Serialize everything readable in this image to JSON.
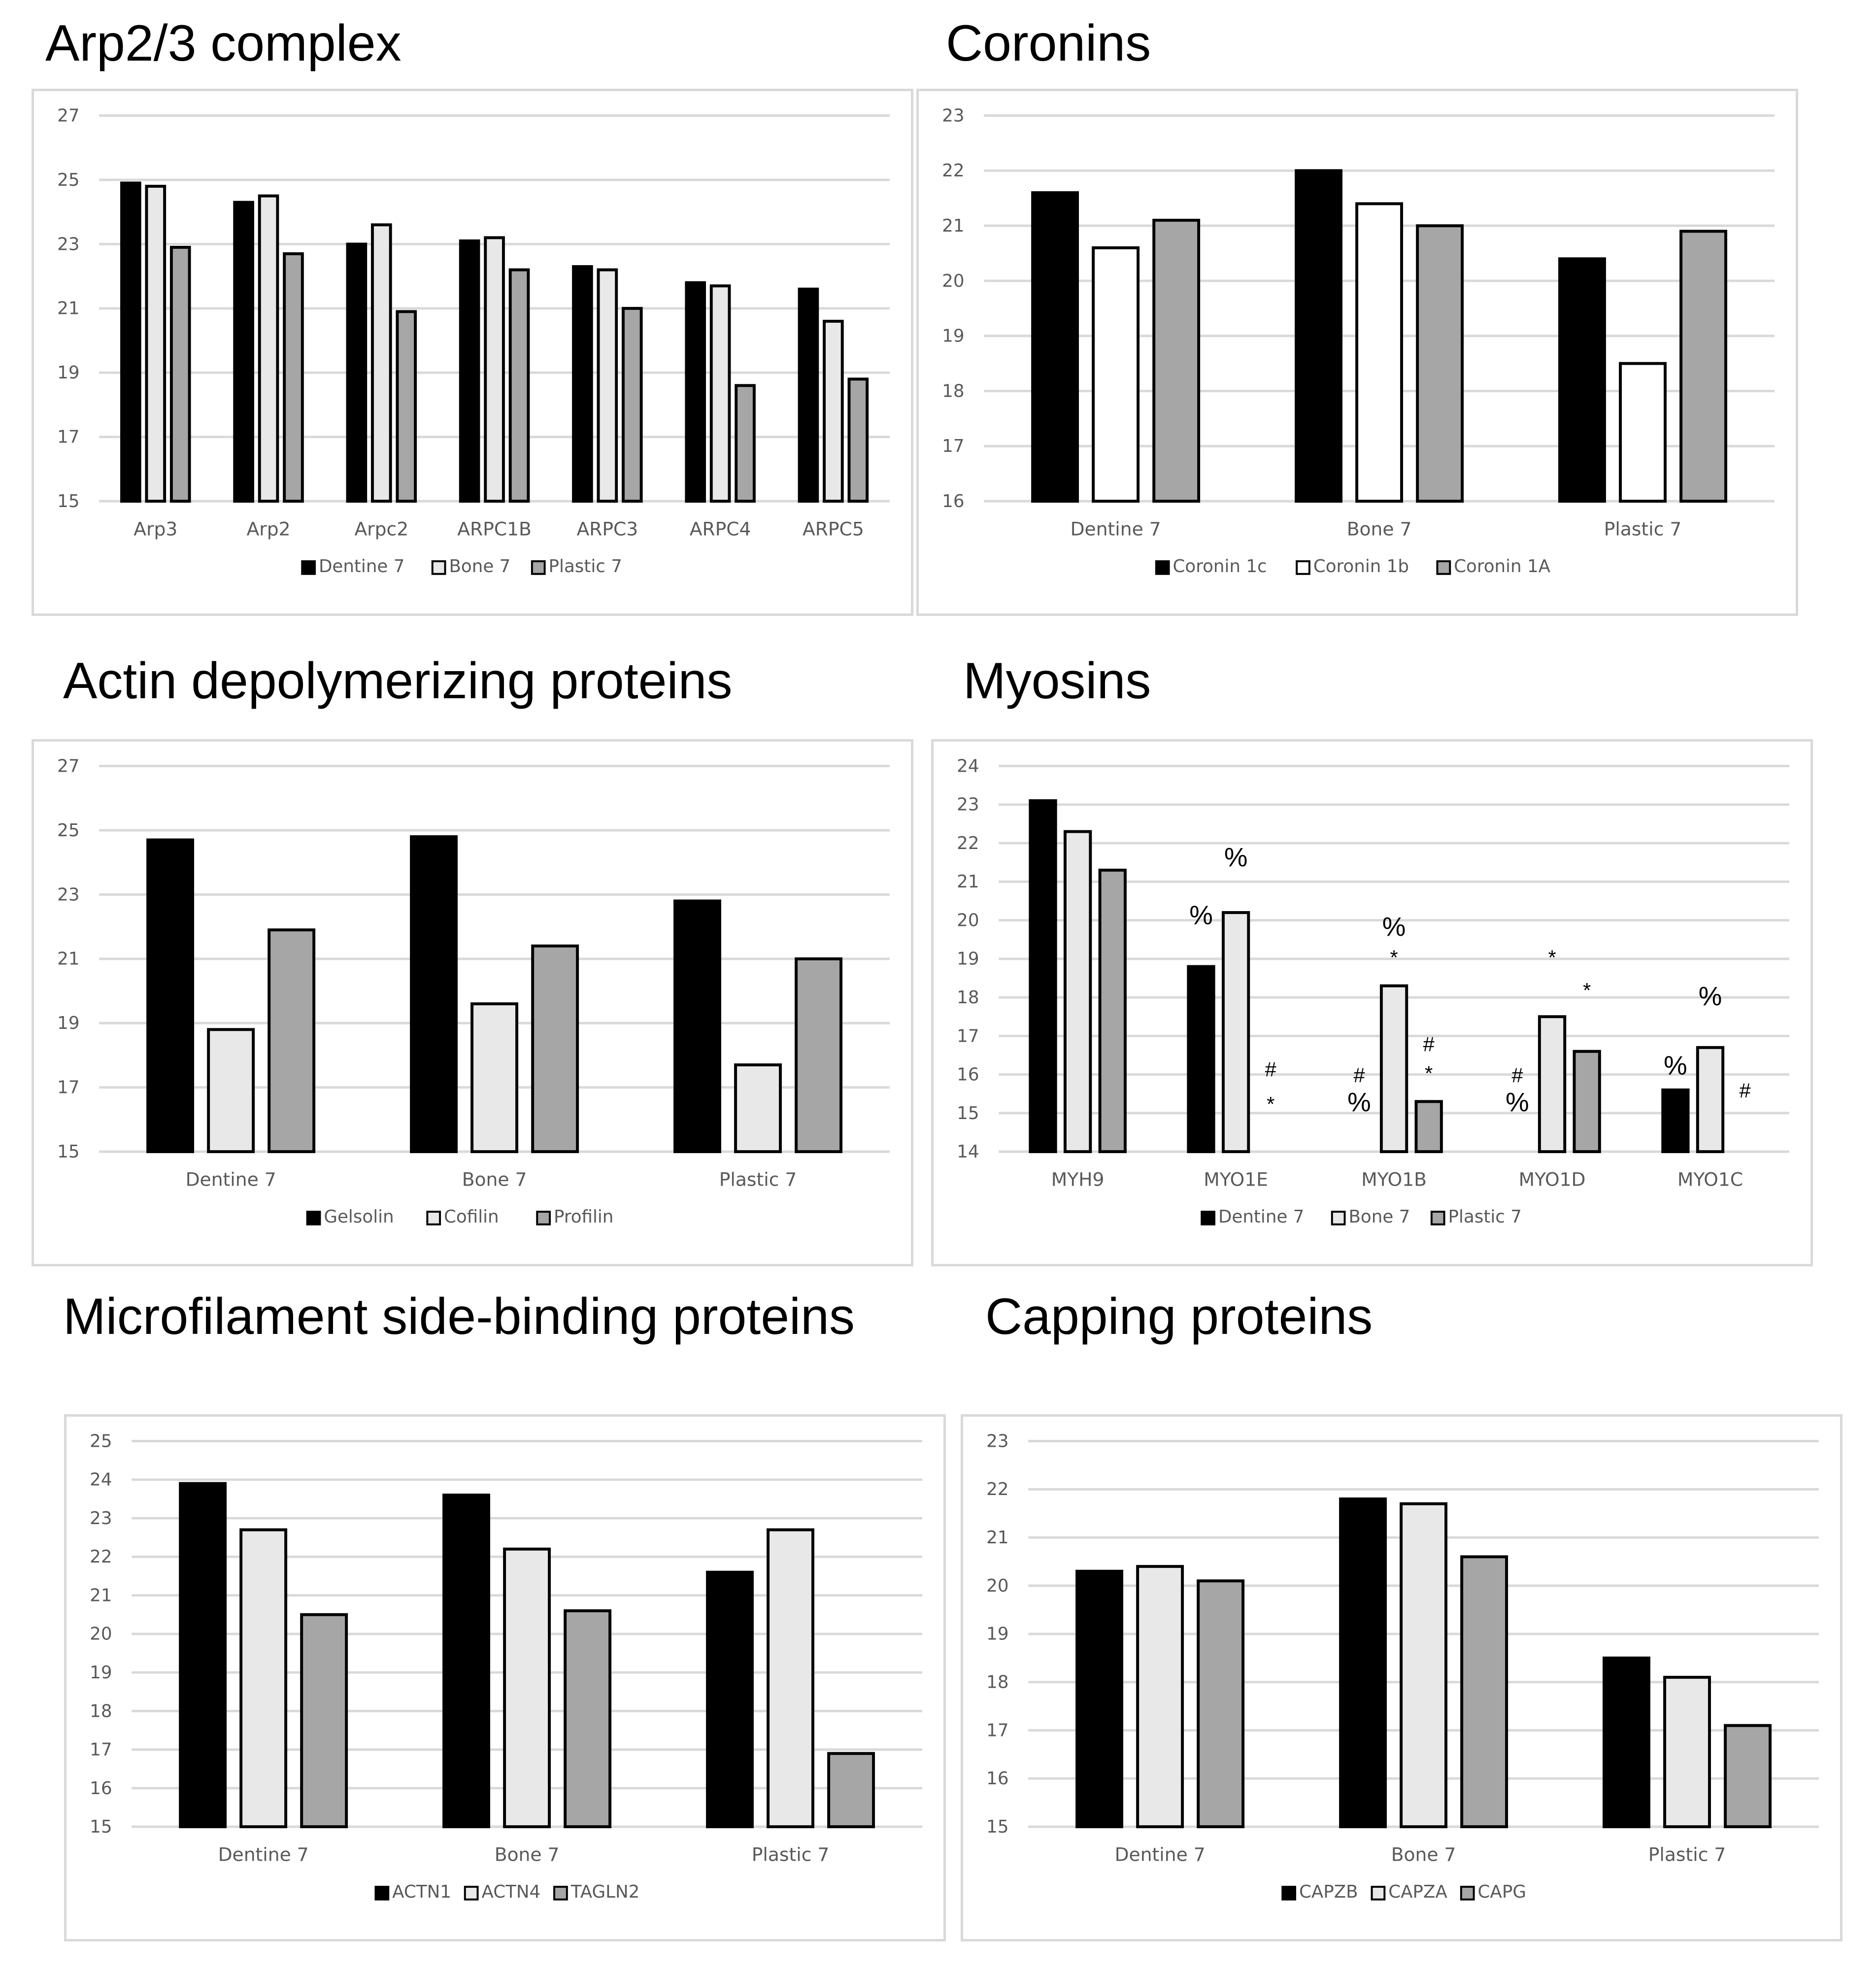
{
  "colors": {
    "dentine": "#000000",
    "bone": "#e8e8e8",
    "bone_white": "#ffffff",
    "plastic": "#a6a6a6",
    "grid": "#d9d9d9",
    "axis_text": "#595959"
  },
  "chart_data": [
    {
      "id": "arp23",
      "type": "bar",
      "title": "Arp2/3 complex",
      "categories": [
        "Arp3",
        "Arp2",
        "Arpc2",
        "ARPC1B",
        "ARPC3",
        "ARPC4",
        "ARPC5"
      ],
      "series": [
        {
          "name": "Dentine 7",
          "values": [
            24.9,
            24.3,
            23.0,
            23.1,
            22.3,
            21.8,
            21.6
          ]
        },
        {
          "name": "Bone 7",
          "values": [
            24.8,
            24.5,
            23.6,
            23.2,
            22.2,
            21.7,
            20.6
          ]
        },
        {
          "name": "Plastic 7",
          "values": [
            22.9,
            22.7,
            20.9,
            22.2,
            21.0,
            18.6,
            18.8
          ]
        }
      ],
      "ylim": [
        15,
        27
      ],
      "yticks": [
        15,
        17,
        19,
        21,
        23,
        25,
        27
      ],
      "annotations": []
    },
    {
      "id": "coronins",
      "type": "bar",
      "title": "Coronins",
      "categories": [
        "Dentine 7",
        "Bone 7",
        "Plastic 7"
      ],
      "series": [
        {
          "name": "Coronin 1c",
          "values": [
            21.6,
            22.0,
            20.4
          ]
        },
        {
          "name": "Coronin 1b",
          "values": [
            20.6,
            21.4,
            18.5
          ]
        },
        {
          "name": "Coronin 1A",
          "values": [
            21.1,
            21.0,
            20.9
          ]
        }
      ],
      "ylim": [
        16,
        23
      ],
      "yticks": [
        16,
        17,
        18,
        19,
        20,
        21,
        22,
        23
      ],
      "annotations": []
    },
    {
      "id": "adp",
      "type": "bar",
      "title": "Actin depolymerizing proteins",
      "categories": [
        "Dentine 7",
        "Bone 7",
        "Plastic 7"
      ],
      "series": [
        {
          "name": "Gelsolin",
          "values": [
            24.7,
            24.8,
            22.8
          ]
        },
        {
          "name": "Cofilin",
          "values": [
            18.8,
            19.6,
            17.7
          ]
        },
        {
          "name": "Profilin",
          "values": [
            21.9,
            21.4,
            21.0
          ]
        }
      ],
      "ylim": [
        15,
        27
      ],
      "yticks": [
        15,
        17,
        19,
        21,
        23,
        25,
        27
      ],
      "annotations": []
    },
    {
      "id": "myosins",
      "type": "bar",
      "title": "Myosins",
      "categories": [
        "MYH9",
        "MYO1E",
        "MYO1B",
        "MYO1D",
        "MYO1C"
      ],
      "series": [
        {
          "name": "Dentine 7",
          "values": [
            23.1,
            18.8,
            null,
            null,
            15.6
          ]
        },
        {
          "name": "Bone 7",
          "values": [
            22.3,
            20.2,
            18.3,
            17.5,
            16.7
          ]
        },
        {
          "name": "Plastic 7",
          "values": [
            21.3,
            null,
            15.3,
            16.6,
            null
          ]
        }
      ],
      "ylim": [
        14,
        24
      ],
      "yticks": [
        14,
        15,
        16,
        17,
        18,
        19,
        20,
        21,
        22,
        23,
        24
      ],
      "annotations": [
        {
          "cat": 1,
          "series": 0,
          "y": 19.9,
          "text": "%",
          "size": "big"
        },
        {
          "cat": 1,
          "series": 1,
          "y": 21.4,
          "text": "%",
          "size": "big"
        },
        {
          "cat": 1,
          "series": 2,
          "y": 15.95,
          "text": "#",
          "size": "small"
        },
        {
          "cat": 1,
          "series": 2,
          "y": 15.05,
          "text": "*",
          "size": "small"
        },
        {
          "cat": 2,
          "series": 0,
          "y": 15.8,
          "text": "#",
          "size": "small"
        },
        {
          "cat": 2,
          "series": 0,
          "y": 15.05,
          "text": "%",
          "size": "big"
        },
        {
          "cat": 2,
          "series": 1,
          "y": 19.6,
          "text": "%",
          "size": "big"
        },
        {
          "cat": 2,
          "series": 1,
          "y": 18.85,
          "text": "*",
          "size": "small"
        },
        {
          "cat": 2,
          "series": 2,
          "y": 16.6,
          "text": "#",
          "size": "small"
        },
        {
          "cat": 2,
          "series": 2,
          "y": 15.85,
          "text": "*",
          "size": "small"
        },
        {
          "cat": 3,
          "series": 0,
          "y": 15.8,
          "text": "#",
          "size": "small"
        },
        {
          "cat": 3,
          "series": 0,
          "y": 15.05,
          "text": "%",
          "size": "big"
        },
        {
          "cat": 3,
          "series": 1,
          "y": 18.85,
          "text": "*",
          "size": "small"
        },
        {
          "cat": 3,
          "series": 2,
          "y": 18.0,
          "text": "*",
          "size": "small"
        },
        {
          "cat": 4,
          "series": 0,
          "y": 16.0,
          "text": "%",
          "size": "big"
        },
        {
          "cat": 4,
          "series": 1,
          "y": 17.8,
          "text": "%",
          "size": "big"
        },
        {
          "cat": 4,
          "series": 2,
          "y": 15.4,
          "text": "#",
          "size": "small"
        }
      ]
    },
    {
      "id": "msbp",
      "type": "bar",
      "title": "Microfilament side-binding proteins",
      "categories": [
        "Dentine 7",
        "Bone 7",
        "Plastic 7"
      ],
      "series": [
        {
          "name": "ACTN1",
          "values": [
            23.9,
            23.6,
            21.6
          ]
        },
        {
          "name": "ACTN4",
          "values": [
            22.7,
            22.2,
            22.7
          ]
        },
        {
          "name": "TAGLN2",
          "values": [
            20.5,
            20.6,
            16.9
          ]
        }
      ],
      "ylim": [
        15,
        25
      ],
      "yticks": [
        15,
        16,
        17,
        18,
        19,
        20,
        21,
        22,
        23,
        24,
        25
      ],
      "annotations": []
    },
    {
      "id": "capping",
      "type": "bar",
      "title": "Capping proteins",
      "categories": [
        "Dentine 7",
        "Bone 7",
        "Plastic 7"
      ],
      "series": [
        {
          "name": "CAPZB",
          "values": [
            20.3,
            21.8,
            18.5
          ]
        },
        {
          "name": "CAPZA",
          "values": [
            20.4,
            21.7,
            18.1
          ]
        },
        {
          "name": "CAPG",
          "values": [
            20.1,
            20.6,
            17.1
          ]
        }
      ],
      "ylim": [
        15,
        23
      ],
      "yticks": [
        15,
        16,
        17,
        18,
        19,
        20,
        21,
        22,
        23
      ],
      "annotations": []
    }
  ]
}
